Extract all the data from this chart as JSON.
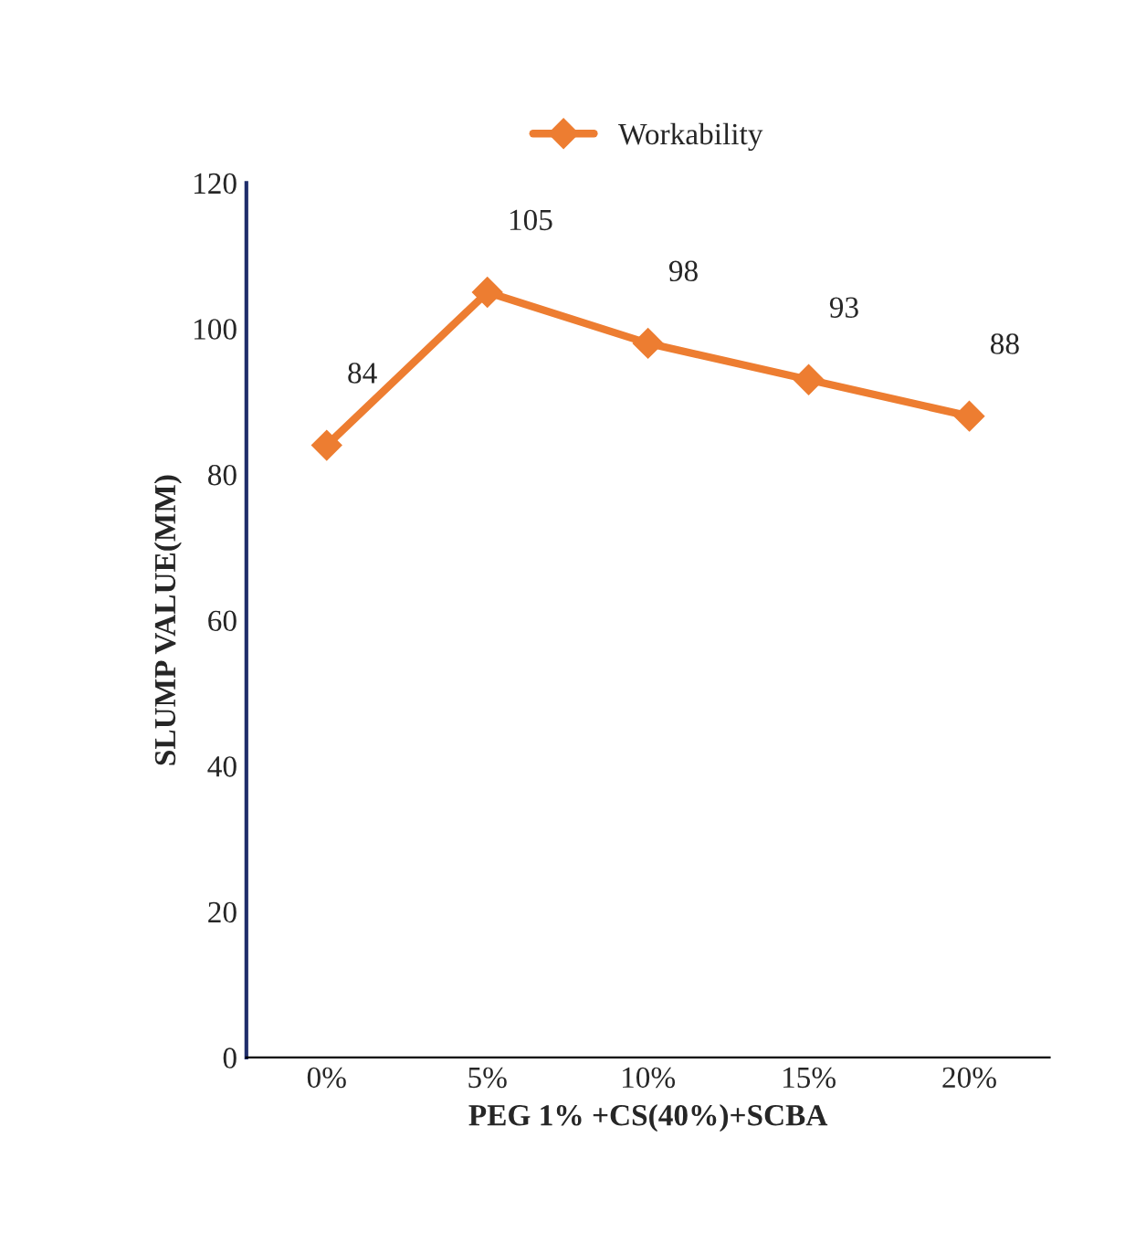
{
  "chart_data": {
    "type": "line",
    "xlabel": "PEG 1% +CS(40%)+SCBA",
    "ylabel": "SLUMP VALUE(MM)",
    "categories": [
      "0%",
      "5%",
      "10%",
      "15%",
      "20%"
    ],
    "series": [
      {
        "name": "Workability",
        "color": "#ed7d31",
        "values": [
          84,
          105,
          98,
          93,
          88
        ]
      }
    ],
    "ylim": [
      0,
      120
    ],
    "yticks": [
      0,
      20,
      40,
      60,
      80,
      100,
      120
    ],
    "grid": false,
    "legend": "top",
    "marker": "diamond",
    "line_style": "solid",
    "data_labels": true
  }
}
